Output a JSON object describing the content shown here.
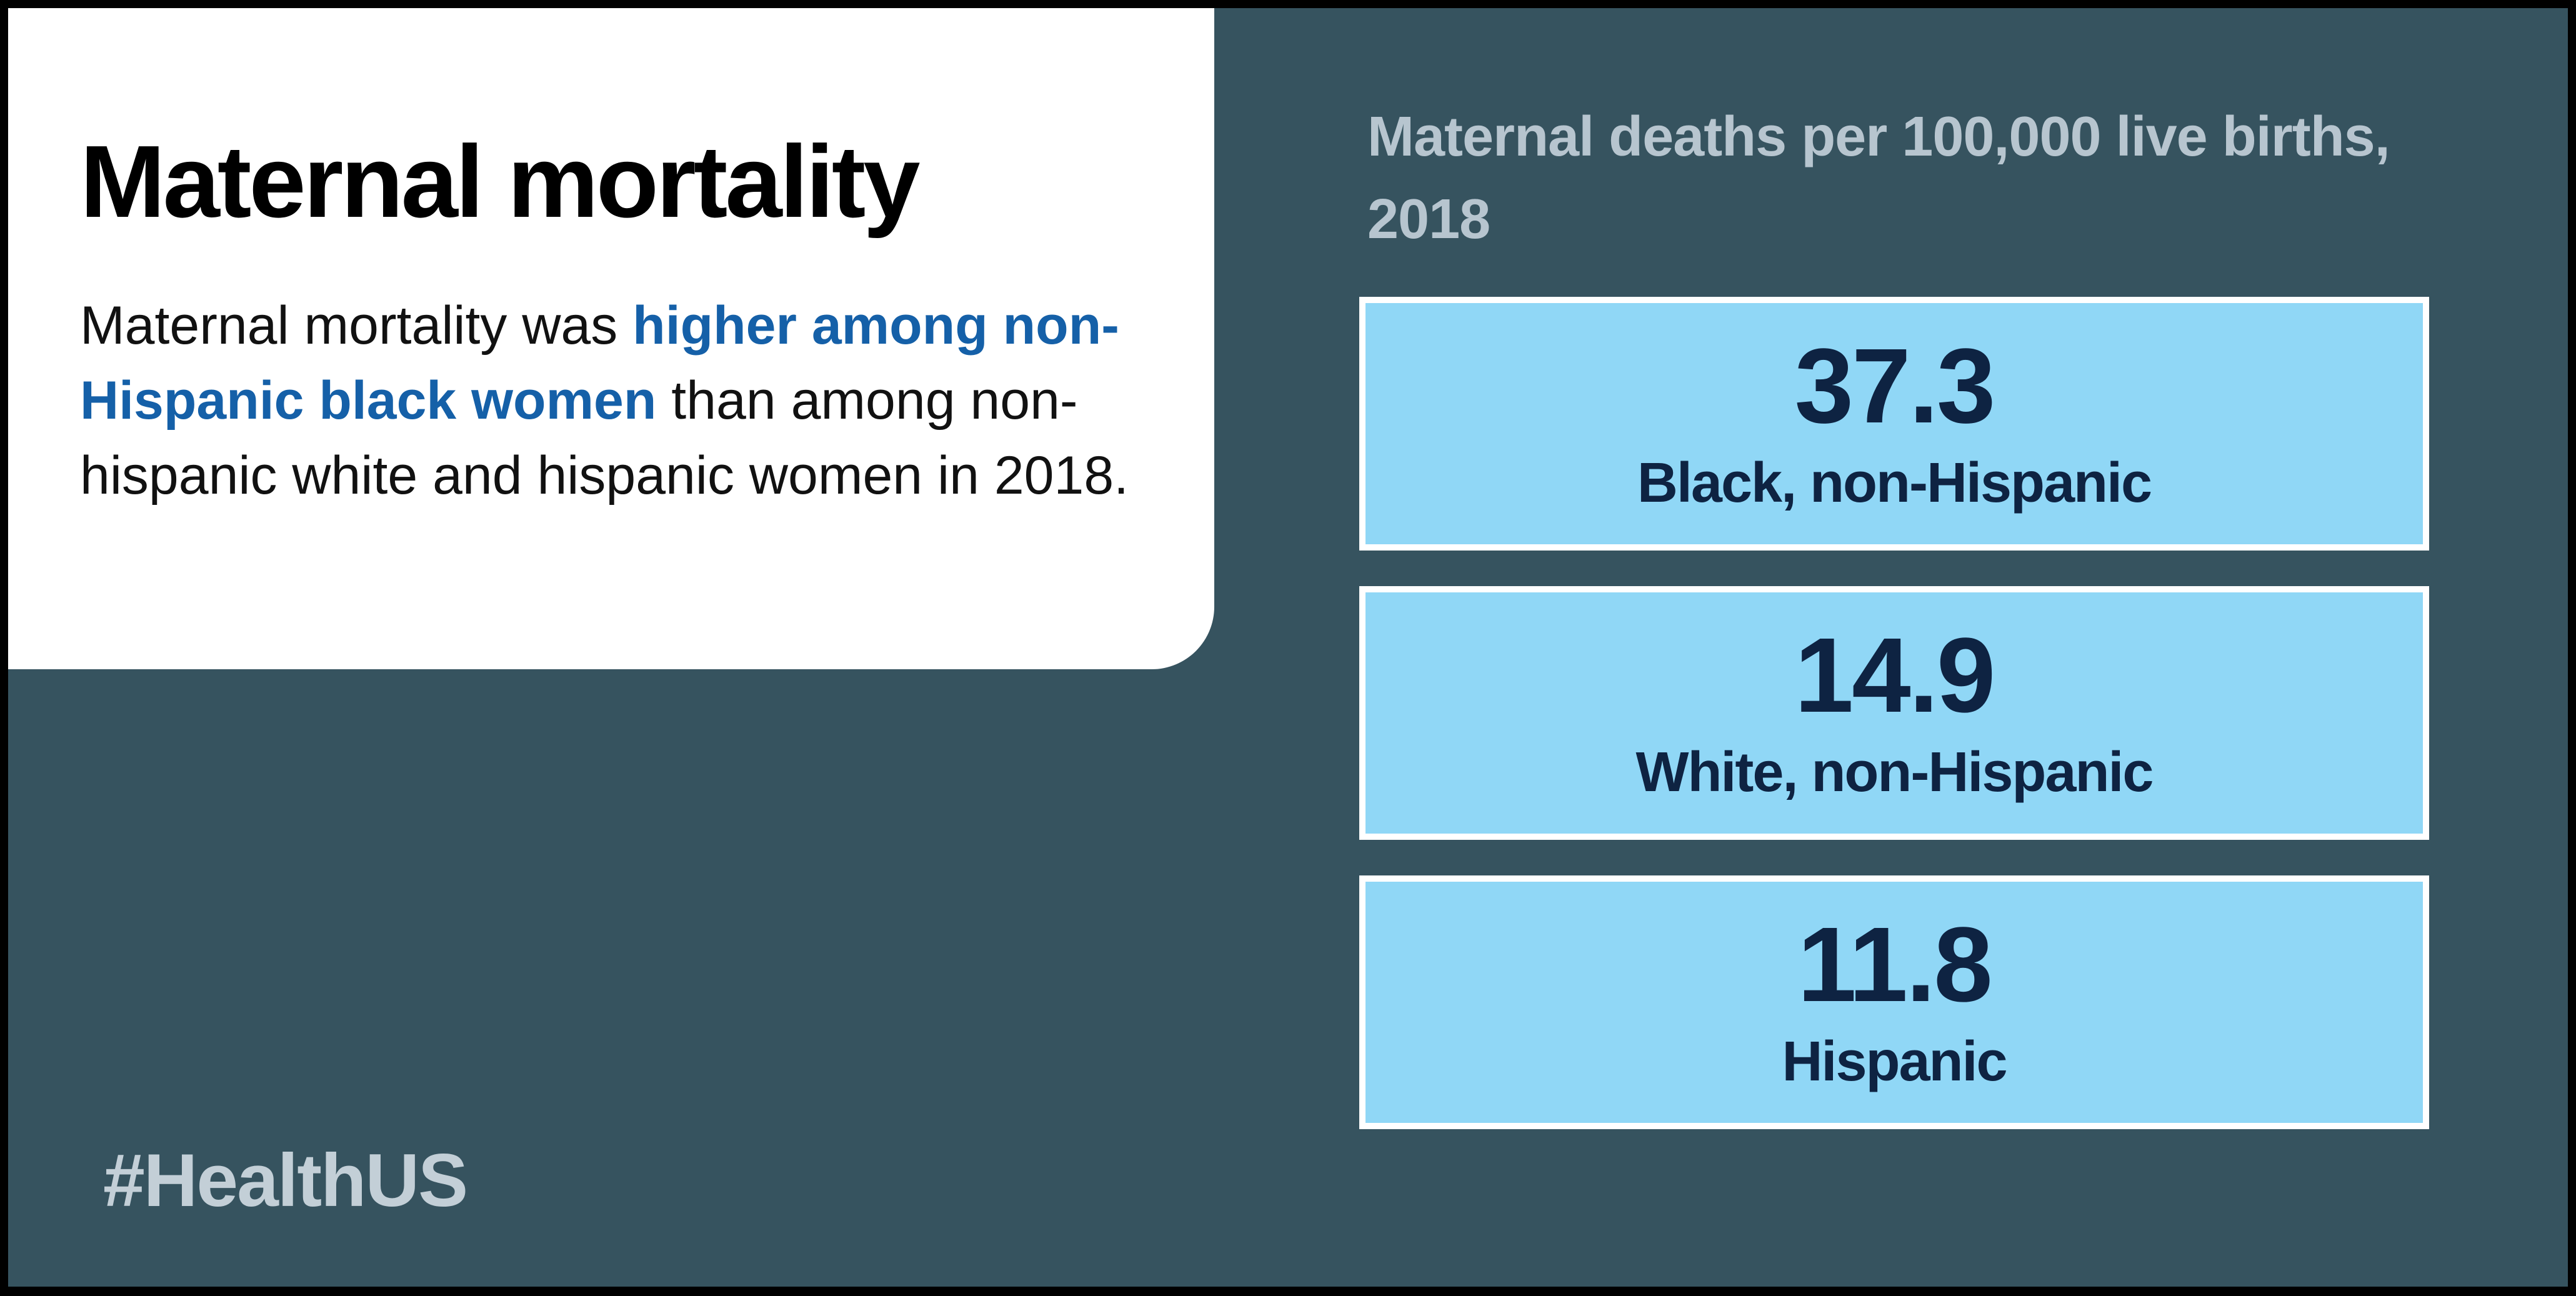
{
  "intro": {
    "title": "Maternal mortality",
    "text_before": "Maternal mortality was ",
    "text_highlight": "higher among non-Hispanic black women",
    "text_after": " than among non-hispanic white and hispanic women in 2018."
  },
  "hashtag": "#HealthUS",
  "stats": {
    "heading": "Maternal deaths per 100,000 live births, 2018",
    "items": [
      {
        "value": "37.3",
        "label": "Black, non-Hispanic"
      },
      {
        "value": "14.9",
        "label": "White, non-Hispanic"
      },
      {
        "value": "11.8",
        "label": "Hispanic"
      }
    ]
  },
  "colors": {
    "background": "#36535f",
    "card": "#ffffff",
    "highlight": "#1560a8",
    "stat_fill": "#90d7f6",
    "stat_text": "#0e2342",
    "muted_text": "#b7c5cf"
  }
}
